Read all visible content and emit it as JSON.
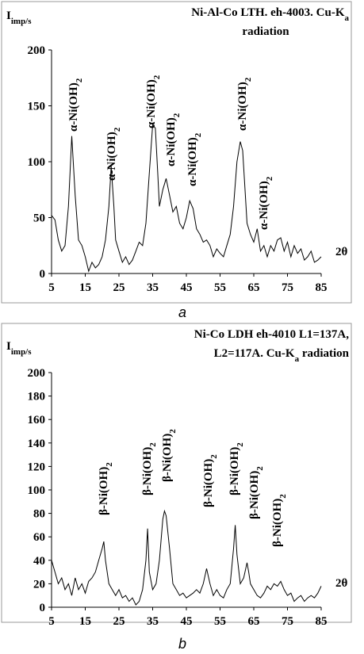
{
  "chart_data": [
    {
      "type": "line",
      "title_lines": [
        [
          "Ni-Al-Co LTH. eh-4003.  Cu-K",
          "a"
        ],
        [
          "radiation"
        ]
      ],
      "ylabel": [
        "I",
        "imp/s"
      ],
      "xlabel": "2θ",
      "caption": "a",
      "annotations": [
        [
          "α-Ni(OH)",
          "2"
        ],
        [
          "α-Ni(OH)",
          "2"
        ],
        [
          "α-Ni(OH)",
          "2"
        ],
        [
          "α-Ni(OH)",
          "2"
        ],
        [
          "α-Ni(OH)",
          "2"
        ],
        [
          "α-Ni(OH)",
          "2"
        ],
        [
          "α-Ni(OH)",
          "2"
        ]
      ],
      "color": "#000000",
      "xlim": [
        5,
        85
      ],
      "ylim": [
        0,
        200
      ],
      "xticks": [
        5,
        15,
        25,
        35,
        45,
        55,
        65,
        75,
        85
      ],
      "yticks": [
        0,
        50,
        100,
        150,
        200
      ],
      "x": [
        5,
        6,
        7,
        8,
        9,
        10,
        11,
        12,
        13,
        14,
        15,
        16,
        17,
        18,
        19,
        20,
        21,
        22,
        22.7,
        23.5,
        24,
        25,
        26,
        27,
        28,
        29,
        30,
        31,
        32,
        33,
        34,
        35,
        35.8,
        36.5,
        37,
        38,
        39,
        40,
        41,
        42,
        43,
        44,
        45,
        46,
        47,
        48,
        49,
        50,
        51,
        52,
        53,
        54,
        55,
        56,
        57,
        58,
        59,
        60,
        61,
        61.7,
        62.5,
        63,
        64,
        65,
        66,
        67,
        68,
        69,
        70,
        71,
        72,
        73,
        74,
        75,
        76,
        77,
        78,
        79,
        80,
        81,
        82,
        83,
        84,
        85
      ],
      "values": [
        52,
        48,
        30,
        20,
        25,
        60,
        123,
        70,
        30,
        25,
        15,
        2,
        10,
        5,
        8,
        15,
        30,
        60,
        96,
        60,
        30,
        20,
        10,
        15,
        8,
        12,
        20,
        28,
        25,
        45,
        90,
        133,
        130,
        90,
        60,
        75,
        85,
        70,
        55,
        60,
        45,
        40,
        50,
        65,
        58,
        40,
        35,
        28,
        30,
        25,
        15,
        22,
        18,
        15,
        25,
        35,
        60,
        100,
        118,
        110,
        70,
        45,
        35,
        28,
        40,
        20,
        25,
        15,
        25,
        20,
        30,
        32,
        20,
        28,
        15,
        25,
        18,
        22,
        12,
        15,
        20,
        10,
        12,
        15
      ]
    },
    {
      "type": "line",
      "title_lines": [
        [
          "Ni-Co LDH eh-4010 L1=137A,"
        ],
        [
          "L2=117A. Cu-K",
          "a",
          " radiation"
        ]
      ],
      "ylabel": [
        "I",
        "imp/s"
      ],
      "xlabel": "2θ",
      "caption": "b",
      "annotations": [
        [
          "β-Ni(OH)",
          "2"
        ],
        [
          "β-Ni(OH)",
          "2"
        ],
        [
          "β-Ni(OH)",
          "2"
        ],
        [
          "β-Ni(OH)",
          "2"
        ],
        [
          "β-Ni(OH)",
          "2"
        ],
        [
          "β-Ni(OH)",
          "2"
        ],
        [
          "β-Ni(OH)",
          "2"
        ]
      ],
      "color": "#000000",
      "xlim": [
        5,
        85
      ],
      "ylim": [
        0,
        200
      ],
      "xticks": [
        5,
        15,
        25,
        35,
        45,
        55,
        65,
        75,
        85
      ],
      "yticks": [
        0,
        20,
        40,
        60,
        80,
        100,
        120,
        140,
        160,
        180,
        200
      ],
      "x": [
        5,
        6,
        7,
        8,
        9,
        10,
        11,
        12,
        13,
        14,
        15,
        16,
        17,
        18,
        19,
        20,
        20.5,
        21,
        22,
        23,
        24,
        25,
        26,
        27,
        28,
        29,
        30,
        31,
        32,
        33,
        33.5,
        34,
        35,
        36,
        37,
        38,
        38.5,
        39,
        40,
        41,
        42,
        43,
        44,
        45,
        46,
        47,
        48,
        49,
        50,
        51,
        52,
        53,
        54,
        55,
        56,
        57,
        58,
        59,
        59.5,
        60,
        61,
        62,
        63,
        63.5,
        64,
        65,
        66,
        67,
        68,
        69,
        70,
        71,
        72,
        73,
        74,
        75,
        76,
        77,
        78,
        79,
        80,
        81,
        82,
        83,
        84,
        85
      ],
      "values": [
        40,
        30,
        20,
        25,
        15,
        20,
        10,
        25,
        15,
        20,
        12,
        22,
        25,
        30,
        40,
        50,
        56,
        40,
        20,
        15,
        10,
        15,
        8,
        10,
        5,
        8,
        2,
        5,
        15,
        40,
        67,
        30,
        15,
        20,
        40,
        75,
        82,
        78,
        50,
        20,
        15,
        10,
        12,
        8,
        10,
        12,
        15,
        12,
        20,
        33,
        20,
        10,
        15,
        10,
        8,
        15,
        20,
        50,
        70,
        45,
        20,
        25,
        38,
        30,
        20,
        15,
        10,
        8,
        12,
        18,
        15,
        20,
        18,
        22,
        15,
        10,
        12,
        5,
        8,
        10,
        5,
        8,
        10,
        8,
        12,
        18
      ]
    }
  ]
}
